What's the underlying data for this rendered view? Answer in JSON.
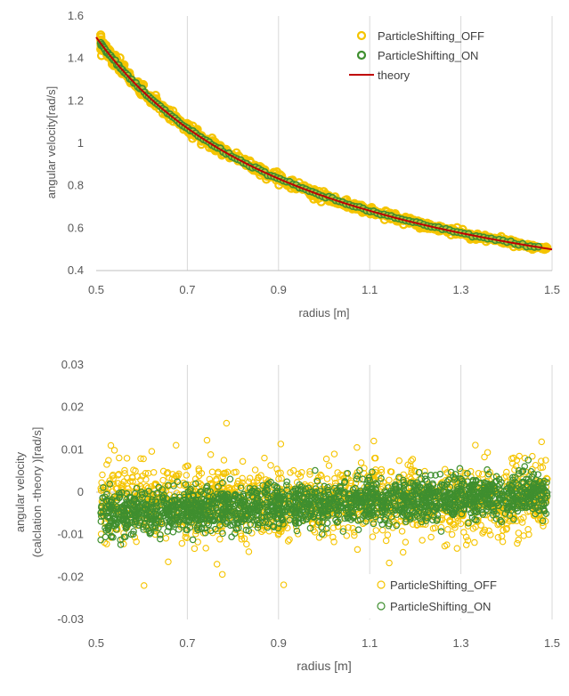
{
  "colors": {
    "off": "#f5c400",
    "on": "#3f8f2f",
    "theory": "#c00000",
    "off_fill": "#b9c23a"
  },
  "chart_data": [
    {
      "type": "scatter",
      "xlabel": "radius [m]",
      "ylabel": "angular velocity[rad/s]",
      "xlim": [
        0.5,
        1.5
      ],
      "ylim": [
        0.4,
        1.6
      ],
      "xticks": [
        "0.5",
        "0.7",
        "0.9",
        "1.1",
        "1.3",
        "1.5"
      ],
      "yticks": [
        "0.4",
        "0.6",
        "0.8",
        "1",
        "1.2",
        "1.4",
        "1.6"
      ],
      "grid": "vertical",
      "legend_position": "top-right",
      "series": [
        {
          "name": "ParticleShifting_OFF",
          "marker": "circle-open",
          "color": "#f5c400",
          "model": "0.75/x",
          "x_range": [
            0.51,
            1.49
          ],
          "spread": 0.006
        },
        {
          "name": "ParticleShifting_ON",
          "marker": "circle-open",
          "color": "#3f8f2f",
          "model": "0.75/x",
          "x_range": [
            0.51,
            1.47
          ],
          "spread": 0.003
        },
        {
          "name": "theory",
          "marker": "line",
          "color": "#c00000",
          "model": "0.75/x",
          "x_range": [
            0.5,
            1.5
          ]
        }
      ]
    },
    {
      "type": "scatter",
      "xlabel": "radius [m]",
      "ylabel_line1": "angular velocity",
      "ylabel_line2": "(calclation -theory )[rad/s]",
      "xlim": [
        0.5,
        1.5
      ],
      "ylim": [
        -0.03,
        0.03
      ],
      "xticks": [
        "0.5",
        "0.7",
        "0.9",
        "1.1",
        "1.3",
        "1.5"
      ],
      "yticks": [
        "-0.03",
        "-0.02",
        "-0.01",
        "0",
        "0.01",
        "0.02",
        "0.03"
      ],
      "grid": "vertical",
      "legend_position": "bottom-right",
      "series": [
        {
          "name": "ParticleShifting_OFF",
          "marker": "circle-open",
          "color": "#f5c400",
          "x_range": [
            0.51,
            1.49
          ],
          "center": -0.002,
          "spread_core": 0.005,
          "outliers_to": [
            -0.022,
            0.017
          ]
        },
        {
          "name": "ParticleShifting_ON",
          "marker": "circle-open",
          "color": "#3f8f2f",
          "x_range": [
            0.51,
            1.49
          ],
          "center_start": -0.005,
          "center_end": -0.0005,
          "spread_core": 0.0025
        }
      ]
    }
  ]
}
